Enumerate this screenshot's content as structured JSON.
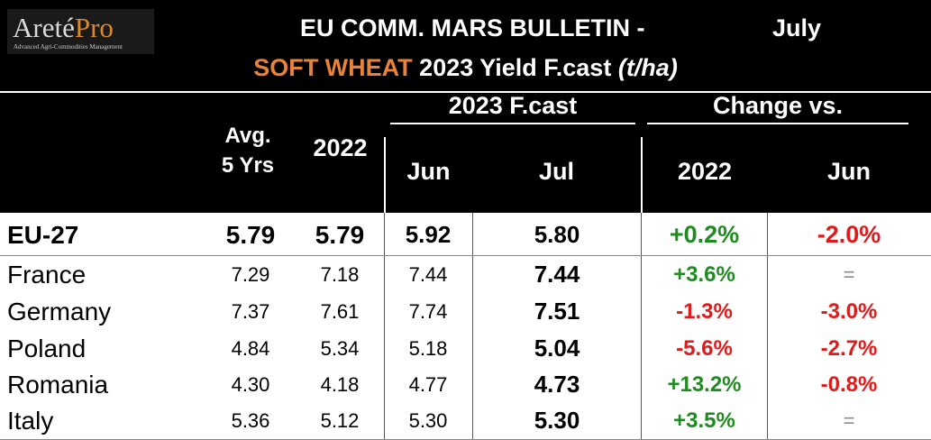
{
  "header": {
    "logo_main_a": "Areté",
    "logo_main_b": "Pro",
    "logo_sub": "Advanced Agri-Commodities Management",
    "title_line1": "EU COMM. MARS BULLETIN  -",
    "month": "July",
    "title_commodity": "SOFT WHEAT",
    "title_rest": " 2023 Yield F.cast ",
    "title_unit": "(t/ha)"
  },
  "columns": {
    "avg_line1": "Avg.",
    "avg_line2": "5 Yrs",
    "prev_year": "2022",
    "forecast_group": "2023 F.cast",
    "jun": "Jun",
    "jul": "Jul",
    "change_group": "Change vs.",
    "chg_2022": "2022",
    "chg_jun": "Jun"
  },
  "colors": {
    "header_bg": "#000000",
    "commodity": "#e8833a",
    "positive": "#1e8c1e",
    "negative": "#e01a1a",
    "neutral": "#8c8c8c"
  },
  "chart_data": {
    "type": "table",
    "title": "EU COMM. MARS BULLETIN - July — SOFT WHEAT 2023 Yield F.cast (t/ha)",
    "columns": [
      "",
      "Avg. 5 Yrs",
      "2022",
      "2023 F.cast Jun",
      "2023 F.cast Jul",
      "Change vs. 2022",
      "Change vs. Jun"
    ],
    "rows": [
      {
        "name": "EU-27",
        "avg5": "5.79",
        "y2022": "5.79",
        "jun": "5.92",
        "jul": "5.80",
        "chg2022": "+0.2%",
        "chgJun": "-2.0%",
        "s2022": "pos",
        "sJun": "neg"
      },
      {
        "name": "France",
        "avg5": "7.29",
        "y2022": "7.18",
        "jun": "7.44",
        "jul": "7.44",
        "chg2022": "+3.6%",
        "chgJun": "=",
        "s2022": "pos",
        "sJun": "neutral"
      },
      {
        "name": "Germany",
        "avg5": "7.37",
        "y2022": "7.61",
        "jun": "7.74",
        "jul": "7.51",
        "chg2022": "-1.3%",
        "chgJun": "-3.0%",
        "s2022": "neg",
        "sJun": "neg"
      },
      {
        "name": "Poland",
        "avg5": "4.84",
        "y2022": "5.34",
        "jun": "5.18",
        "jul": "5.04",
        "chg2022": "-5.6%",
        "chgJun": "-2.7%",
        "s2022": "neg",
        "sJun": "neg"
      },
      {
        "name": "Romania",
        "avg5": "4.30",
        "y2022": "4.18",
        "jun": "4.77",
        "jul": "4.73",
        "chg2022": "+13.2%",
        "chgJun": "-0.8%",
        "s2022": "pos",
        "sJun": "neg"
      },
      {
        "name": "Italy",
        "avg5": "5.36",
        "y2022": "5.12",
        "jun": "5.30",
        "jul": "5.30",
        "chg2022": "+3.5%",
        "chgJun": "=",
        "s2022": "pos",
        "sJun": "neutral"
      }
    ]
  }
}
